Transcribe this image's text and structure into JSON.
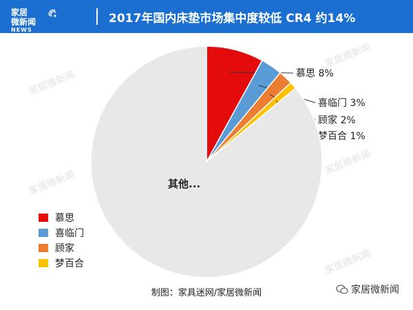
{
  "header": {
    "logo_line1": "家居",
    "logo_line2": "微新闻",
    "logo_news": "NEWS",
    "title": "2017年国内床垫市场集中度较低 CR4 约14%"
  },
  "chart_data": {
    "type": "pie",
    "title": "2017年国内床垫市场集中度较低 CR4 约14%",
    "slices": [
      {
        "label": "慕思",
        "value": 8,
        "display": "慕思 8%",
        "color": "#e30b0b"
      },
      {
        "label": "喜临门",
        "value": 3,
        "display": "喜临门 3%",
        "color": "#5b9bd5"
      },
      {
        "label": "顾家",
        "value": 2,
        "display": "顾家 2%",
        "color": "#ed7d31"
      },
      {
        "label": "梦百合",
        "value": 1,
        "display": "梦百合 1%",
        "color": "#ffc000"
      },
      {
        "label": "其他",
        "value": 86,
        "display": "其他...",
        "color": "#e8e8e8"
      }
    ],
    "legend": [
      "慕思",
      "喜临门",
      "顾家",
      "梦百合"
    ],
    "legend_position": "bottom-left"
  },
  "footer": {
    "credit": "制图：家具迷网/家居微新闻",
    "wechat": "家居微新闻"
  },
  "watermark": "家居微新闻"
}
